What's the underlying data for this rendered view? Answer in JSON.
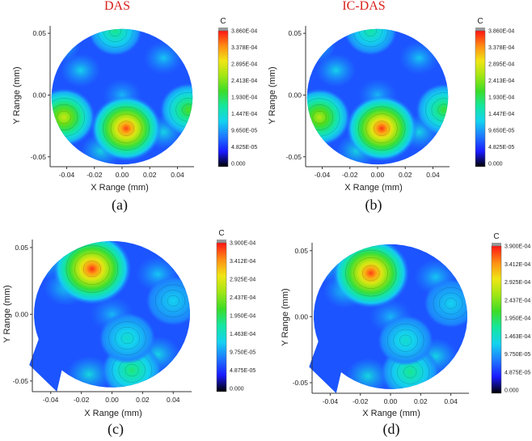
{
  "chart_data": [
    {
      "type": "heatmap",
      "panel": "a",
      "title": "DAS",
      "caption": "(a)",
      "xlabel": "X Range (mm)",
      "ylabel": "Y Range (mm)",
      "xticks": [
        "-0.04",
        "-0.02",
        "0.00",
        "0.02",
        "0.04"
      ],
      "yticks": [
        "0.05",
        "0.00",
        "-0.05"
      ],
      "colorbar_title": "C",
      "colorbar_ticks": [
        "3.860E-04",
        "3.378E-04",
        "2.895E-04",
        "2.413E-04",
        "1.930E-04",
        "1.447E-04",
        "9.650E-05",
        "4.825E-05",
        "0.000"
      ],
      "vmax": 0.000386,
      "shape": "circle",
      "peaks": [
        {
          "x": 0.003,
          "y": -0.027,
          "value": 0.00037
        },
        {
          "x": -0.042,
          "y": -0.018,
          "value": 0.00028
        },
        {
          "x": 0.048,
          "y": -0.012,
          "value": 0.00022
        },
        {
          "x": -0.005,
          "y": 0.052,
          "value": 0.00018
        }
      ]
    },
    {
      "type": "heatmap",
      "panel": "b",
      "title": "IC-DAS",
      "caption": "(b)",
      "xlabel": "X Range (mm)",
      "ylabel": "Y Range (mm)",
      "xticks": [
        "-0.04",
        "-0.02",
        "0.00",
        "0.02",
        "0.04"
      ],
      "yticks": [
        "0.05",
        "0.00",
        "-0.05"
      ],
      "colorbar_title": "C",
      "colorbar_ticks": [
        "3.860E-04",
        "3.378E-04",
        "2.895E-04",
        "2.413E-04",
        "1.930E-04",
        "1.447E-04",
        "9.650E-05",
        "4.825E-05",
        "0.000"
      ],
      "vmax": 0.000386,
      "shape": "circle",
      "peaks": [
        {
          "x": 0.003,
          "y": -0.027,
          "value": 0.000375
        },
        {
          "x": -0.042,
          "y": -0.018,
          "value": 0.00027
        },
        {
          "x": 0.048,
          "y": -0.012,
          "value": 0.00021
        },
        {
          "x": -0.005,
          "y": 0.052,
          "value": 0.00017
        }
      ]
    },
    {
      "type": "heatmap",
      "panel": "c",
      "title": "",
      "caption": "(c)",
      "xlabel": "X Range (mm)",
      "ylabel": "Y Range (mm)",
      "xticks": [
        "-0.04",
        "-0.02",
        "0.00",
        "0.02",
        "0.04"
      ],
      "yticks": [
        "0.05",
        "0.00",
        "-0.05"
      ],
      "colorbar_title": "C",
      "colorbar_ticks": [
        "3.900E-04",
        "3.412E-04",
        "2.925E-04",
        "2.437E-04",
        "1.950E-04",
        "1.463E-04",
        "9.750E-05",
        "4.875E-05",
        "0.000"
      ],
      "vmax": 0.00039,
      "shape": "clipped-circle",
      "peaks": [
        {
          "x": -0.013,
          "y": 0.034,
          "value": 0.00038
        },
        {
          "x": 0.013,
          "y": -0.042,
          "value": 0.00019
        },
        {
          "x": 0.01,
          "y": -0.018,
          "value": 0.00015
        },
        {
          "x": 0.04,
          "y": 0.01,
          "value": 0.00013
        }
      ]
    },
    {
      "type": "heatmap",
      "panel": "d",
      "title": "",
      "caption": "(d)",
      "xlabel": "X Range (mm)",
      "ylabel": "Y Range (mm)",
      "xticks": [
        "-0.04",
        "-0.02",
        "0.00",
        "0.02",
        "0.04"
      ],
      "yticks": [
        "0.05",
        "0.00",
        "-0.05"
      ],
      "colorbar_title": "C",
      "colorbar_ticks": [
        "3.900E-04",
        "3.412E-04",
        "2.925E-04",
        "2.437E-04",
        "1.950E-04",
        "1.463E-04",
        "9.750E-05",
        "4.875E-05",
        "0.000"
      ],
      "vmax": 0.00039,
      "shape": "clipped-circle",
      "peaks": [
        {
          "x": -0.013,
          "y": 0.033,
          "value": 0.000375
        },
        {
          "x": 0.013,
          "y": -0.042,
          "value": 0.00018
        },
        {
          "x": 0.01,
          "y": -0.018,
          "value": 0.00015
        },
        {
          "x": 0.04,
          "y": 0.01,
          "value": 0.00013
        }
      ]
    }
  ],
  "colormap": [
    "#000000",
    "#1a1aff",
    "#1e78ff",
    "#14d2f0",
    "#14e6a0",
    "#3cdc28",
    "#a0e614",
    "#f0e614",
    "#ff8c14",
    "#ff1414"
  ]
}
